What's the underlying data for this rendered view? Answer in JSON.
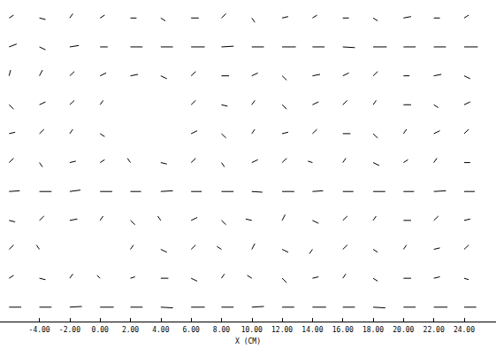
{
  "chart_data": {
    "type": "quiver",
    "x_label": "X (CM)",
    "color": "#000000",
    "tick_labels": "x",
    "grid": false,
    "xlim": [
      -6.6,
      26.1
    ],
    "ylim": [
      0,
      22
    ],
    "xticks": [
      {
        "value": -4,
        "label": "-4.00"
      },
      {
        "value": -2,
        "label": "-2.00"
      },
      {
        "value": 0,
        "label": "0.00"
      },
      {
        "value": 2,
        "label": "2.00"
      },
      {
        "value": 4,
        "label": "4.00"
      },
      {
        "value": 6,
        "label": "6.00"
      },
      {
        "value": 8,
        "label": "8.00"
      },
      {
        "value": 10,
        "label": "10.00"
      },
      {
        "value": 12,
        "label": "12.00"
      },
      {
        "value": 14,
        "label": "14.00"
      },
      {
        "value": 16,
        "label": "16.00"
      },
      {
        "value": 18,
        "label": "18.00"
      },
      {
        "value": 20,
        "label": "20.00"
      },
      {
        "value": 22,
        "label": "22.00"
      },
      {
        "value": 24,
        "label": "24.00"
      }
    ],
    "vectors": {
      "x": [
        -6,
        -4,
        -2,
        0,
        2,
        4,
        6,
        8,
        10,
        12,
        14,
        16,
        18,
        20,
        22,
        24
      ],
      "y": [
        1,
        3,
        5,
        7,
        9,
        11,
        13,
        15,
        17,
        19,
        21
      ],
      "u": [
        [
          0.8,
          0.8,
          0.8,
          0.9,
          0.8,
          0.8,
          0.9,
          0.8,
          0.8,
          0.8,
          0.9,
          0.8,
          0.8,
          0.8,
          0.9,
          0.8
        ],
        [
          0.3,
          0.4,
          0.2,
          -0.2,
          0.3,
          0.5,
          0.4,
          0.2,
          -0.3,
          0.3,
          0.4,
          0.2,
          0.3,
          0.5,
          0.4,
          0.3
        ],
        [
          0.3,
          -0.2,
          null,
          null,
          0.2,
          0.4,
          0.3,
          -0.3,
          0.2,
          0.4,
          -0.2,
          0.3,
          0.3,
          0.2,
          0.4,
          0.3
        ],
        [
          0.4,
          0.3,
          0.5,
          0.2,
          0.3,
          -0.2,
          0.4,
          0.3,
          -0.4,
          0.2,
          0.4,
          0.3,
          0.2,
          0.5,
          0.3,
          0.4
        ],
        [
          0.7,
          0.8,
          0.7,
          0.8,
          0.7,
          0.8,
          0.7,
          0.8,
          0.7,
          0.8,
          0.7,
          0.7,
          0.8,
          0.7,
          0.8,
          0.7
        ],
        [
          0.3,
          0.2,
          0.4,
          0.3,
          -0.2,
          0.4,
          0.3,
          0.2,
          0.4,
          0.3,
          -0.3,
          0.2,
          0.4,
          0.3,
          0.2,
          0.4
        ],
        [
          0.4,
          0.3,
          0.2,
          0.3,
          null,
          null,
          0.4,
          0.3,
          0.2,
          0.4,
          0.3,
          0.5,
          0.3,
          0.2,
          0.4,
          0.3
        ],
        [
          0.3,
          0.4,
          0.3,
          0.2,
          null,
          null,
          0.3,
          0.4,
          0.2,
          0.3,
          0.4,
          0.3,
          0.2,
          0.5,
          0.3,
          0.4
        ],
        [
          0.1,
          0.2,
          0.3,
          0.4,
          0.5,
          0.4,
          0.3,
          0.5,
          0.4,
          0.3,
          0.5,
          0.4,
          0.3,
          0.4,
          0.5,
          0.4
        ],
        [
          0.5,
          0.4,
          0.6,
          0.5,
          0.8,
          0.8,
          0.9,
          0.8,
          0.8,
          0.9,
          0.8,
          0.8,
          0.9,
          0.8,
          0.8,
          0.9
        ],
        [
          0.3,
          0.4,
          0.2,
          0.3,
          0.4,
          0.3,
          0.5,
          0.3,
          0.2,
          0.4,
          0.3,
          0.4,
          0.3,
          0.5,
          0.4,
          0.3
        ]
      ],
      "v": [
        [
          0,
          0,
          0.05,
          0,
          0,
          -0.05,
          0,
          0,
          0.05,
          0,
          0,
          0,
          -0.05,
          0,
          0,
          0
        ],
        [
          0.2,
          -0.1,
          0.3,
          0.2,
          0.1,
          0,
          -0.2,
          0.3,
          0.2,
          -0.3,
          0.1,
          0.3,
          -0.2,
          0,
          0.1,
          -0.1
        ],
        [
          0.3,
          0.3,
          null,
          null,
          0.3,
          -0.2,
          0.3,
          0.2,
          0.4,
          -0.2,
          -0.3,
          0.3,
          -0.2,
          0.3,
          0.1,
          0.3
        ],
        [
          -0.1,
          0.3,
          0.1,
          0.3,
          -0.3,
          0.3,
          0.2,
          -0.3,
          0.1,
          0.4,
          -0.2,
          0.3,
          0.3,
          0,
          0.3,
          0.1
        ],
        [
          0.05,
          0,
          0.1,
          0,
          0,
          0.05,
          0,
          0,
          -0.05,
          0,
          0.05,
          0,
          0,
          0,
          0.05,
          0
        ],
        [
          0.3,
          -0.3,
          0.1,
          0.2,
          0.3,
          -0.1,
          0.3,
          -0.3,
          0.2,
          0.3,
          0.1,
          0.3,
          -0.2,
          0.2,
          0.3,
          0
        ],
        [
          0.1,
          0.3,
          0.3,
          -0.2,
          null,
          null,
          0.2,
          -0.3,
          0.3,
          0.1,
          0.3,
          0,
          -0.3,
          0.3,
          0.2,
          0.3
        ],
        [
          -0.3,
          0.2,
          0.3,
          0.3,
          null,
          null,
          0.3,
          -0.1,
          0.3,
          -0.3,
          0.2,
          0.3,
          0.3,
          0,
          -0.2,
          0.2
        ],
        [
          0.4,
          0.4,
          0.3,
          0.2,
          0.1,
          -0.2,
          0.3,
          0,
          0.2,
          -0.3,
          0.1,
          0.2,
          0.3,
          0,
          0.1,
          -0.2
        ],
        [
          0.2,
          -0.2,
          0.1,
          0,
          0,
          0,
          0,
          0.05,
          0,
          0,
          0,
          -0.05,
          0,
          0,
          0,
          0
        ],
        [
          0.2,
          -0.1,
          0.3,
          0.2,
          0,
          -0.2,
          0,
          0.3,
          -0.3,
          0.1,
          0.2,
          0,
          -0.2,
          0.1,
          0,
          0.2
        ]
      ]
    }
  }
}
